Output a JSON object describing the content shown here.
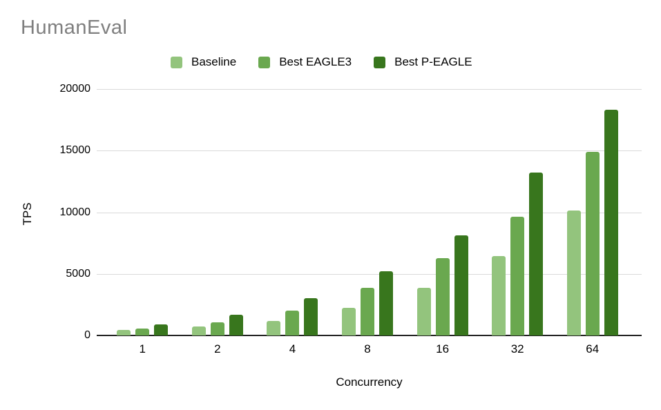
{
  "title": "HumanEval",
  "axes": {
    "x_title": "Concurrency",
    "y_title": "TPS"
  },
  "colors": {
    "title_text": "#7f7f7f",
    "baseline": "#93c47d",
    "best_eagle3": "#6aa84f",
    "best_p_eagle": "#38761d",
    "gridline": "#d9d9d9",
    "axis_line": "#212121"
  },
  "chart_data": {
    "type": "bar",
    "title": "HumanEval",
    "xlabel": "Concurrency",
    "ylabel": "TPS",
    "categories": [
      "1",
      "2",
      "4",
      "8",
      "16",
      "32",
      "64"
    ],
    "series": [
      {
        "name": "Baseline",
        "color": "#93c47d",
        "values": [
          450,
          720,
          1200,
          2250,
          3880,
          6450,
          10150
        ]
      },
      {
        "name": "Best EAGLE3",
        "color": "#6aa84f",
        "values": [
          560,
          1080,
          2040,
          3850,
          6280,
          9650,
          14900
        ]
      },
      {
        "name": "Best P-EAGLE",
        "color": "#38761d",
        "values": [
          900,
          1690,
          3050,
          5220,
          8120,
          13250,
          18300
        ]
      }
    ],
    "ylim": [
      0,
      20000
    ],
    "yticks": [
      0,
      5000,
      10000,
      15000,
      20000
    ],
    "ytick_labels": [
      "0",
      "5000",
      "10000",
      "15000",
      "20000"
    ],
    "grid": true,
    "legend_position": "top"
  }
}
